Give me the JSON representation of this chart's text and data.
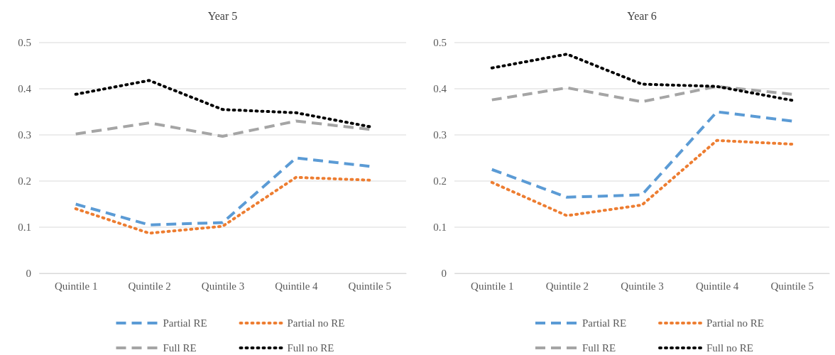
{
  "chart_data": [
    {
      "type": "line",
      "title": "Year 5",
      "categories": [
        "Quintile 1",
        "Quintile 2",
        "Quintile 3",
        "Quintile 4",
        "Quintile 5"
      ],
      "ylim": [
        0,
        0.5
      ],
      "yticks": [
        0,
        0.1,
        0.2,
        0.3,
        0.4,
        0.5
      ],
      "grid": "y",
      "legend": "bottom",
      "marker": "none",
      "series": [
        {
          "name": "Partial RE",
          "color": "#5b9bd5",
          "line_style": "dashed",
          "values": [
            0.15,
            0.105,
            0.11,
            0.25,
            0.232
          ]
        },
        {
          "name": "Partial no RE",
          "color": "#ed7d31",
          "line_style": "dotted",
          "values": [
            0.14,
            0.087,
            0.102,
            0.208,
            0.202
          ]
        },
        {
          "name": "Full RE",
          "color": "#a5a5a5",
          "line_style": "dashed",
          "values": [
            0.302,
            0.326,
            0.297,
            0.33,
            0.312
          ]
        },
        {
          "name": "Full no RE",
          "color": "#000000",
          "line_style": "dotted",
          "values": [
            0.388,
            0.418,
            0.355,
            0.348,
            0.318
          ]
        }
      ]
    },
    {
      "type": "line",
      "title": "Year 6",
      "categories": [
        "Quintile 1",
        "Quintile 2",
        "Quintile 3",
        "Quintile 4",
        "Quintile 5"
      ],
      "ylim": [
        0,
        0.5
      ],
      "yticks": [
        0,
        0.1,
        0.2,
        0.3,
        0.4,
        0.5
      ],
      "grid": "y",
      "legend": "bottom",
      "marker": "none",
      "series": [
        {
          "name": "Partial RE",
          "color": "#5b9bd5",
          "line_style": "dashed",
          "values": [
            0.225,
            0.165,
            0.17,
            0.35,
            0.33
          ]
        },
        {
          "name": "Partial no RE",
          "color": "#ed7d31",
          "line_style": "dotted",
          "values": [
            0.197,
            0.125,
            0.148,
            0.288,
            0.28
          ]
        },
        {
          "name": "Full RE",
          "color": "#a5a5a5",
          "line_style": "dashed",
          "values": [
            0.376,
            0.402,
            0.372,
            0.405,
            0.388
          ]
        },
        {
          "name": "Full no RE",
          "color": "#000000",
          "line_style": "dotted",
          "values": [
            0.445,
            0.475,
            0.41,
            0.405,
            0.375
          ]
        }
      ]
    }
  ]
}
